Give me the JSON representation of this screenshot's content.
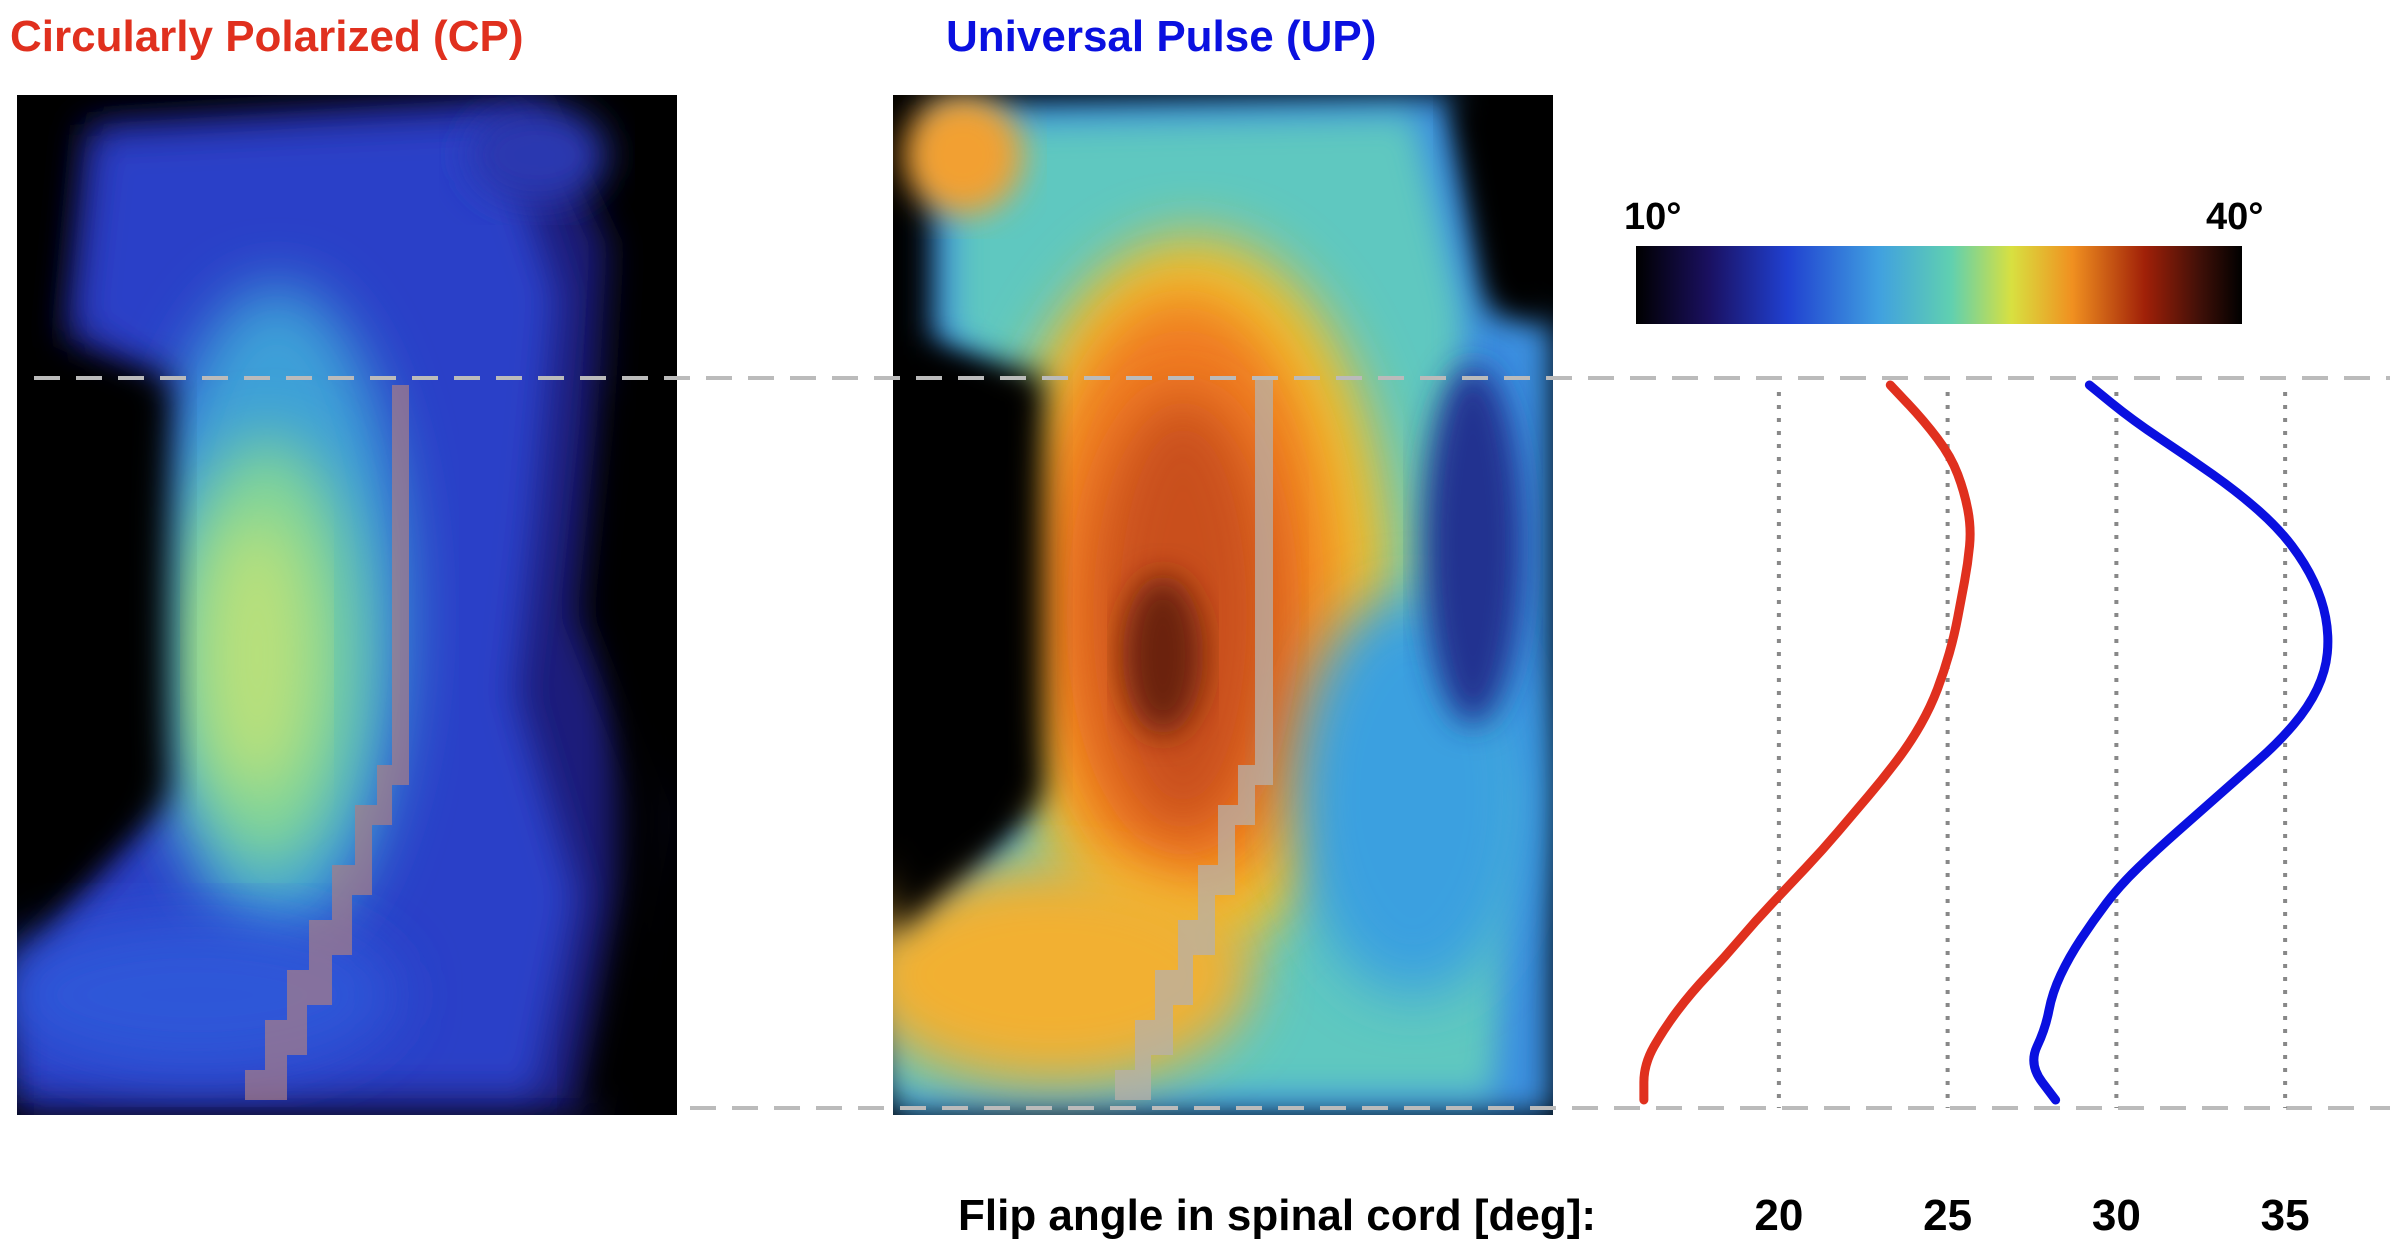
{
  "titles": {
    "cp": "Circularly Polarized (CP)",
    "up": "Universal Pulse (UP)"
  },
  "colors": {
    "cp": "#e0301e",
    "up": "#0a10e0",
    "guide": "#bbbbbb",
    "gridline": "#888888"
  },
  "colorbar": {
    "min_label": "10°",
    "max_label": "40°",
    "colormap": "turbo-like (black, navy, blue, cyan, yellow, orange, dark red, black)"
  },
  "chart_data": {
    "type": "line",
    "xlabel": "Flip angle in spinal cord [deg]:",
    "ylabel": "",
    "xlim": [
      14.7,
      38.7
    ],
    "x_ticks": [
      "20",
      "25",
      "30",
      "35"
    ],
    "grid": "vertical dotted at ticks",
    "series": [
      {
        "key": "cp",
        "color": "#e0301e",
        "points": [
          [
            0.0,
            23.3
          ],
          [
            0.05,
            24.3
          ],
          [
            0.1,
            25.1
          ],
          [
            0.15,
            25.5
          ],
          [
            0.2,
            25.7
          ],
          [
            0.25,
            25.6
          ],
          [
            0.3,
            25.4
          ],
          [
            0.35,
            25.2
          ],
          [
            0.4,
            24.9
          ],
          [
            0.45,
            24.5
          ],
          [
            0.5,
            23.9
          ],
          [
            0.55,
            23.1
          ],
          [
            0.6,
            22.2
          ],
          [
            0.65,
            21.3
          ],
          [
            0.7,
            20.3
          ],
          [
            0.75,
            19.3
          ],
          [
            0.8,
            18.4
          ],
          [
            0.85,
            17.4
          ],
          [
            0.9,
            16.6
          ],
          [
            0.95,
            16.0
          ],
          [
            1.0,
            16.0
          ]
        ]
      },
      {
        "key": "up",
        "color": "#0a10e0",
        "points": [
          [
            0.0,
            29.2
          ],
          [
            0.05,
            30.5
          ],
          [
            0.1,
            32.1
          ],
          [
            0.15,
            33.6
          ],
          [
            0.2,
            34.8
          ],
          [
            0.25,
            35.6
          ],
          [
            0.3,
            36.1
          ],
          [
            0.35,
            36.3
          ],
          [
            0.4,
            36.2
          ],
          [
            0.45,
            35.7
          ],
          [
            0.5,
            34.8
          ],
          [
            0.55,
            33.6
          ],
          [
            0.6,
            32.4
          ],
          [
            0.65,
            31.2
          ],
          [
            0.7,
            30.1
          ],
          [
            0.75,
            29.3
          ],
          [
            0.8,
            28.6
          ],
          [
            0.85,
            28.1
          ],
          [
            0.9,
            27.9
          ],
          [
            0.95,
            27.4
          ],
          [
            1.0,
            28.2
          ]
        ]
      }
    ]
  }
}
